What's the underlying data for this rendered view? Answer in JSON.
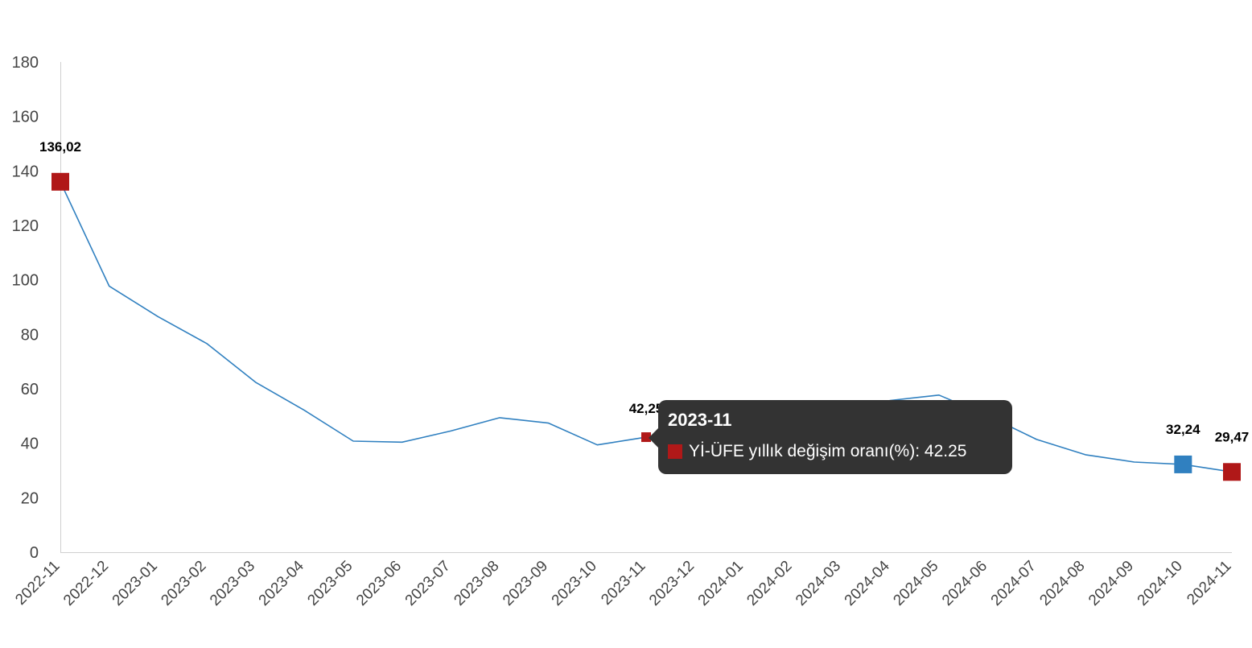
{
  "colors": {
    "line": "#3080c0",
    "highlight_marker": "#b01818",
    "end_marker_blue": "#3080c0",
    "axis": "#d0d0d0",
    "tooltip_bg": "#333333"
  },
  "chart_data": {
    "type": "line",
    "title": "",
    "xlabel": "",
    "ylabel": "",
    "ylim": [
      0,
      180
    ],
    "yticks": [
      0,
      20,
      40,
      60,
      80,
      100,
      120,
      140,
      160,
      180
    ],
    "grid": false,
    "categories": [
      "2022-11",
      "2022-12",
      "2023-01",
      "2023-02",
      "2023-03",
      "2023-04",
      "2023-05",
      "2023-06",
      "2023-07",
      "2023-08",
      "2023-09",
      "2023-10",
      "2023-11",
      "2023-12",
      "2024-01",
      "2024-02",
      "2024-03",
      "2024-04",
      "2024-05",
      "2024-06",
      "2024-07",
      "2024-08",
      "2024-09",
      "2024-10",
      "2024-11"
    ],
    "series": [
      {
        "name": "Yİ-ÜFE yıllık değişim oranı(%)",
        "values": [
          136.02,
          97.7,
          86.5,
          76.6,
          62.4,
          52.1,
          40.8,
          40.4,
          44.5,
          49.4,
          47.4,
          39.4,
          42.25,
          44.2,
          44.2,
          47.3,
          51.5,
          55.7,
          57.7,
          50.1,
          41.4,
          35.8,
          33.1,
          32.24,
          29.47
        ]
      }
    ],
    "data_labels": [
      {
        "index": 0,
        "text": "136,02",
        "marker": "red"
      },
      {
        "index": 12,
        "text": "42,25",
        "marker": "red-small"
      },
      {
        "index": 23,
        "text": "32,24",
        "marker": "blue"
      },
      {
        "index": 24,
        "text": "29,47",
        "marker": "red"
      }
    ]
  },
  "tooltip": {
    "title": "2023-11",
    "series_name": "Yİ-ÜFE yıllık değişim oranı(%)",
    "value": "42.25",
    "line": "Yİ-ÜFE yıllık değişim oranı(%): 42.25"
  }
}
